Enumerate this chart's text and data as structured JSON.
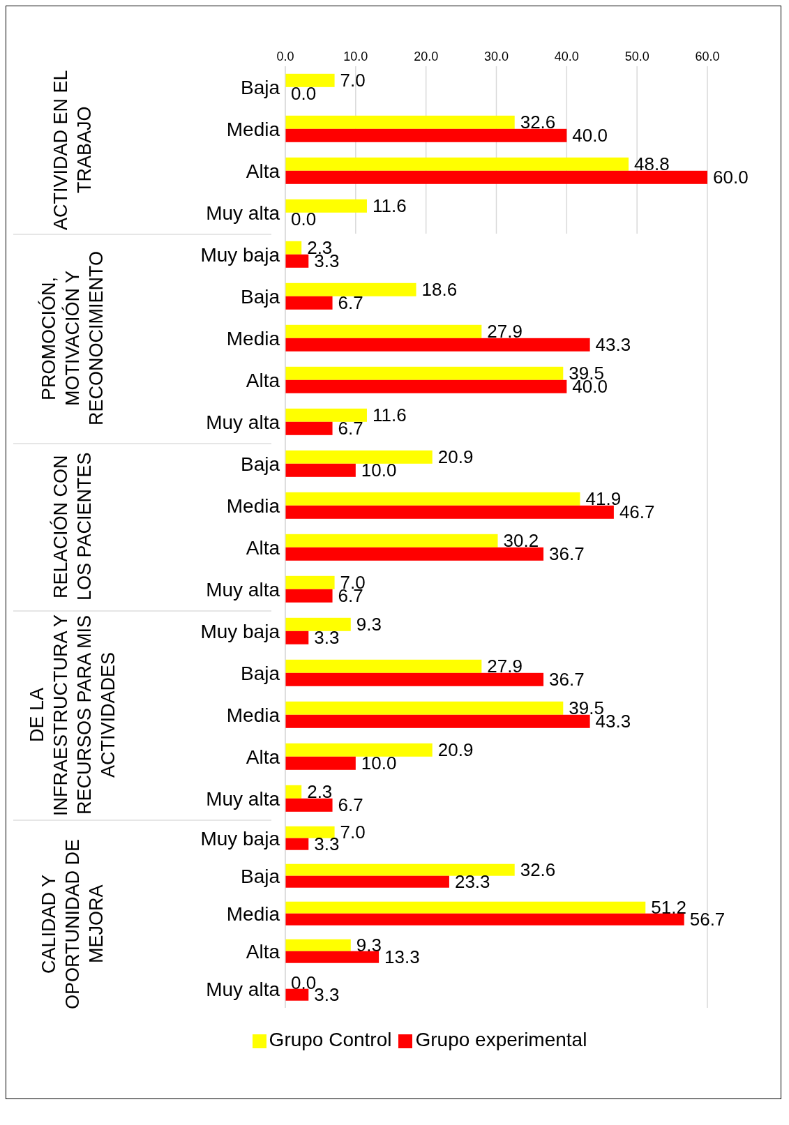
{
  "chart_data": [
    {
      "type": "bar",
      "orientation": "horizontal",
      "title": "ACTIVIDAD EN EL TRABAJO",
      "categories": [
        "Baja",
        "Media",
        "Alta",
        "Muy alta"
      ],
      "xlim": [
        0,
        60
      ],
      "xticks": [
        {
          "value": 0,
          "label": "0.0"
        },
        {
          "value": 10,
          "label": "10.0"
        },
        {
          "value": 20,
          "label": "20.0"
        },
        {
          "value": 30,
          "label": "30.0"
        },
        {
          "value": 40,
          "label": "40.0"
        },
        {
          "value": 50,
          "label": "50.0"
        },
        {
          "value": 60,
          "label": "60.0"
        }
      ],
      "grid": "x",
      "series": [
        {
          "color": "#ffff00",
          "values": [
            7.0,
            32.6,
            48.8,
            11.6
          ],
          "value_labels": [
            "7.0",
            "32.6",
            "48.8",
            "11.6"
          ]
        },
        {
          "color": "#ff0000",
          "values": [
            0.0,
            40.0,
            60.0,
            0.0
          ],
          "value_labels": [
            "0.0",
            "40.0",
            "60.0",
            "0.0"
          ]
        }
      ]
    },
    {
      "type": "bar",
      "orientation": "horizontal",
      "title": "PROMOCIÓN, MOTIVACIÓN Y RECONOCIMIENTO",
      "categories": [
        "Muy baja",
        "Baja",
        "Media",
        "Alta",
        "Muy alta"
      ],
      "xlim": [
        0,
        60
      ],
      "xticks": [
        {
          "value": 0,
          "label": null
        },
        {
          "value": 10,
          "label": null
        },
        {
          "value": 20,
          "label": null
        },
        {
          "value": 30,
          "label": null
        },
        {
          "value": 40,
          "label": null
        },
        {
          "value": 50,
          "label": null
        },
        {
          "value": 60,
          "label": null
        }
      ],
      "grid": "x",
      "tick_labels": "y",
      "series": [
        {
          "color": "#ffff00",
          "values": [
            2.3,
            18.6,
            27.9,
            39.5,
            11.6
          ],
          "value_labels": [
            "2.3",
            "18.6",
            "27.9",
            "39.5",
            "11.6"
          ]
        },
        {
          "color": "#ff0000",
          "values": [
            3.3,
            6.7,
            43.3,
            40.0,
            6.7
          ],
          "value_labels": [
            "3.3",
            "6.7",
            "43.3",
            "40.0",
            "6.7"
          ]
        }
      ]
    },
    {
      "type": "bar",
      "orientation": "horizontal",
      "title": "RELACIÓN CON LOS PACIENTES",
      "categories": [
        "Baja",
        "Media",
        "Alta",
        "Muy alta"
      ],
      "xlim": [
        0,
        60
      ],
      "xticks": [
        {
          "value": 0,
          "label": null
        },
        {
          "value": 10,
          "label": null
        },
        {
          "value": 20,
          "label": null
        },
        {
          "value": 30,
          "label": null
        },
        {
          "value": 40,
          "label": null
        },
        {
          "value": 50,
          "label": null
        },
        {
          "value": 60,
          "label": null
        }
      ],
      "grid": "x",
      "tick_labels": "y",
      "series": [
        {
          "color": "#ffff00",
          "values": [
            20.9,
            41.9,
            30.2,
            7.0
          ],
          "value_labels": [
            "20.9",
            "41.9",
            "30.2",
            "7.0"
          ]
        },
        {
          "color": "#ff0000",
          "values": [
            10.0,
            46.7,
            36.7,
            6.7
          ],
          "value_labels": [
            "10.0",
            "46.7",
            "36.7",
            "6.7"
          ]
        }
      ]
    },
    {
      "type": "bar",
      "orientation": "horizontal",
      "title": "DE LA INFRAESTRUCTURA Y RECURSOS PARA MIS ACTIVIDADES",
      "categories": [
        "Muy baja",
        "Baja",
        "Media",
        "Alta",
        "Muy alta"
      ],
      "xlim": [
        0,
        60
      ],
      "xticks": [
        {
          "value": 0,
          "label": null
        },
        {
          "value": 10,
          "label": null
        },
        {
          "value": 20,
          "label": null
        },
        {
          "value": 30,
          "label": null
        },
        {
          "value": 40,
          "label": null
        },
        {
          "value": 50,
          "label": null
        },
        {
          "value": 60,
          "label": null
        }
      ],
      "grid": "x",
      "tick_labels": "y",
      "series": [
        {
          "color": "#ffff00",
          "values": [
            9.3,
            27.9,
            39.5,
            20.9,
            2.3
          ],
          "value_labels": [
            "9.3",
            "27.9",
            "39.5",
            "20.9",
            "2.3"
          ]
        },
        {
          "color": "#ff0000",
          "values": [
            3.3,
            36.7,
            43.3,
            10.0,
            6.7
          ],
          "value_labels": [
            "3.3",
            "36.7",
            "43.3",
            "10.0",
            "6.7"
          ]
        }
      ]
    },
    {
      "type": "bar",
      "orientation": "horizontal",
      "title": "CALIDAD Y OPORTUNIDAD DE MEJORA",
      "categories": [
        "Muy baja",
        "Baja",
        "Media",
        "Alta",
        "Muy alta"
      ],
      "xlim": [
        0,
        60
      ],
      "xticks": [
        {
          "value": 0,
          "label": null
        },
        {
          "value": 10,
          "label": null
        },
        {
          "value": 20,
          "label": null
        },
        {
          "value": 30,
          "label": null
        },
        {
          "value": 40,
          "label": null
        },
        {
          "value": 50,
          "label": null
        },
        {
          "value": 60,
          "label": null
        }
      ],
      "grid": "x",
      "tick_labels": "y",
      "legend": "bottom",
      "series": [
        {
          "name": "Grupo Control",
          "color": "#ffff00",
          "values": [
            7.0,
            32.6,
            51.2,
            9.3,
            0.0
          ],
          "value_labels": [
            "7.0",
            "32.6",
            "51.2",
            "9.3",
            "0.0"
          ]
        },
        {
          "name": "Grupo experimental",
          "color": "#ff0000",
          "values": [
            3.3,
            23.3,
            56.7,
            13.3,
            3.3
          ],
          "value_labels": [
            "3.3",
            "23.3",
            "56.7",
            "13.3",
            "3.3"
          ]
        }
      ]
    }
  ]
}
